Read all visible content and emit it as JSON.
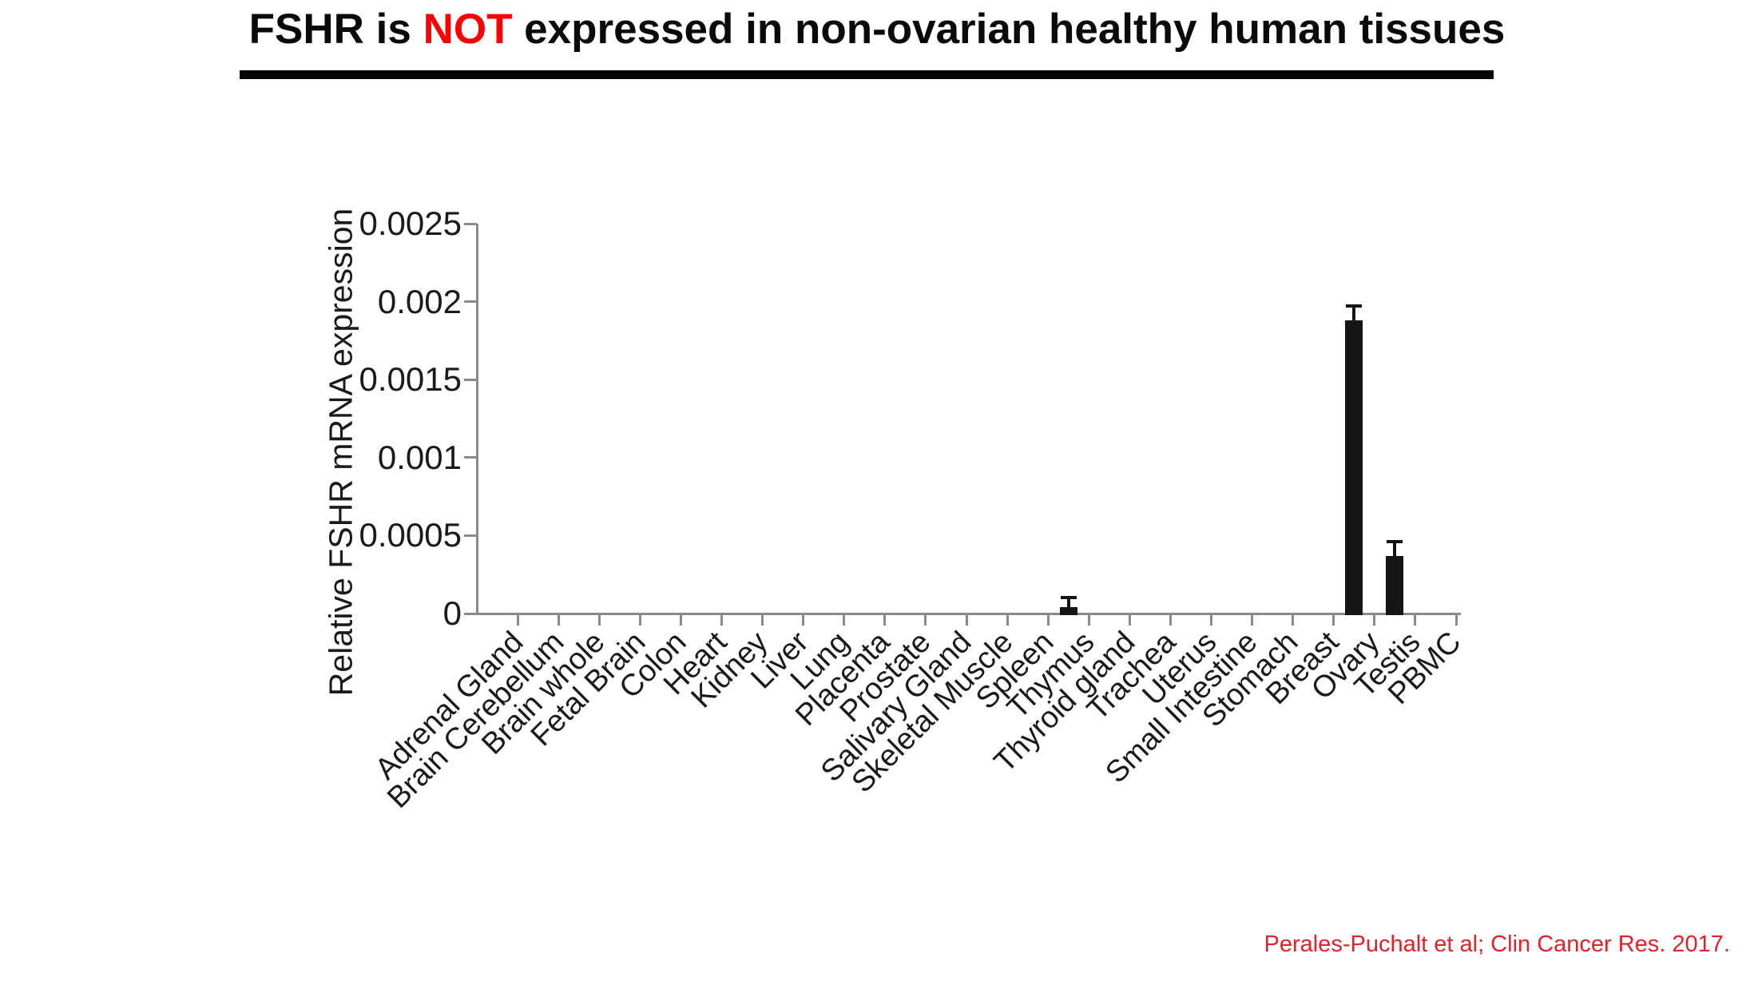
{
  "title": {
    "pre": "FSHR is ",
    "highlight": "NOT",
    "post": " expressed in non-ovarian healthy human tissues"
  },
  "citation": {
    "text": "Perales-Puchalt et al; Clin Cancer Res. 2017."
  },
  "colors": {
    "title_text": "#0a0a0a",
    "highlight_red": "#ff0000",
    "citation_red": "#e32128",
    "bar_black": "#151515",
    "axis_gray": "#8a8a8a",
    "background": "#ffffff"
  },
  "chart_data": {
    "type": "bar",
    "title": "",
    "xlabel": "",
    "ylabel": "Relative FSHR mRNA expression",
    "ylim": [
      0,
      0.0025
    ],
    "grid": false,
    "legend": false,
    "bar_color": "black",
    "error_bars": "upper only, cap style",
    "x_label_rotation_deg": 45,
    "yticks": [
      0,
      0.0005,
      0.001,
      0.0015,
      0.002,
      0.0025
    ],
    "ytick_labels": [
      "0",
      "0.0005",
      "0.001",
      "0.0015",
      "0.002",
      "0.0025"
    ],
    "categories": [
      "Adrenal Gland",
      "Brain Cerebellum",
      "Brain whole",
      "Fetal Brain",
      "Colon",
      "Heart",
      "Kidney",
      "Liver",
      "Lung",
      "Placenta",
      "Prostate",
      "Salivary Gland",
      "Skeletal Muscle",
      "Spleen",
      "Thymus",
      "Thyroid gland",
      "Trachea",
      "Uterus",
      "Small Intestine",
      "Stomach",
      "Breast",
      "Ovary",
      "Testis",
      "PBMC"
    ],
    "values": [
      0,
      0,
      0,
      0,
      0,
      0,
      0,
      0,
      0,
      0,
      0,
      0,
      0,
      0,
      4e-05,
      0,
      0,
      0,
      0,
      0,
      0,
      0.00188,
      0.00037,
      0
    ],
    "errors_up": [
      0,
      0,
      0,
      0,
      0,
      0,
      0,
      0,
      0,
      0,
      0,
      0,
      0,
      0,
      6e-05,
      0,
      0,
      0,
      0,
      0,
      0,
      9e-05,
      9e-05,
      0
    ]
  }
}
